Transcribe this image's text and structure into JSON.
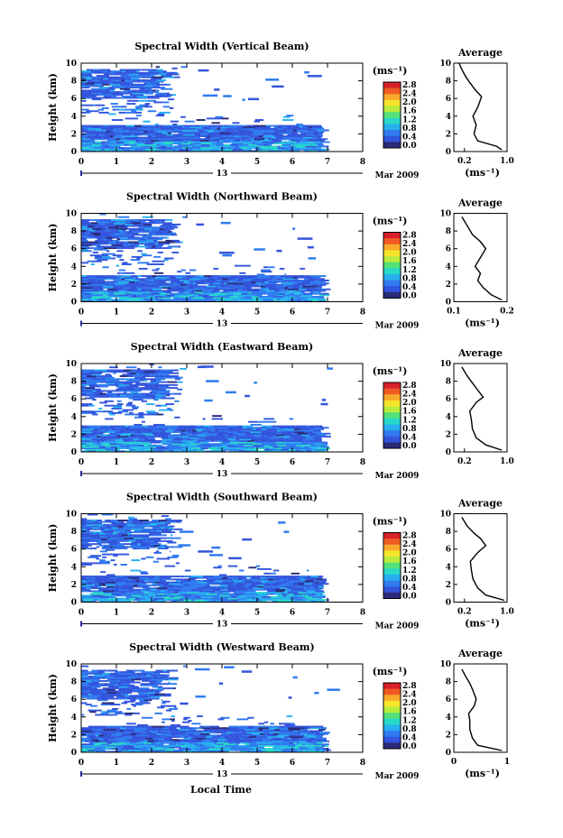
{
  "figure": {
    "xlabel": "Local Time",
    "date_label": "Mar 2009",
    "day_label": "13",
    "unit_label": "(ms⁻¹)",
    "avg_title": "Average",
    "ylabel": "Height (km)"
  },
  "chart_data": [
    {
      "type": "heatmap",
      "title": "Spectral Width (Vertical Beam)",
      "xlim": [
        0,
        8
      ],
      "ylim": [
        0,
        10
      ],
      "xticks": [
        "0",
        "1",
        "2",
        "3",
        "4",
        "5",
        "6",
        "7",
        "8"
      ],
      "yticks": [
        "0",
        "2",
        "4",
        "6",
        "8",
        "10"
      ],
      "colorbar_ticks": [
        "0.0",
        "0.4",
        "0.8",
        "1.2",
        "1.6",
        "2.0",
        "2.4",
        "2.8"
      ],
      "average": {
        "xlim": [
          0,
          1
        ],
        "xticks": [
          "0.2",
          "1.0"
        ],
        "xlabel": "(ms⁻¹)",
        "profile": [
          [
            0.9,
            0.2
          ],
          [
            0.8,
            0.6
          ],
          [
            0.45,
            1.2
          ],
          [
            0.38,
            2.0
          ],
          [
            0.42,
            3.0
          ],
          [
            0.36,
            4.0
          ],
          [
            0.45,
            5.0
          ],
          [
            0.52,
            6.2
          ],
          [
            0.4,
            7.0
          ],
          [
            0.3,
            7.8
          ],
          [
            0.22,
            8.5
          ],
          [
            0.14,
            9.4
          ],
          [
            0.1,
            10.0
          ]
        ]
      }
    },
    {
      "type": "heatmap",
      "title": "Spectral Width (Northward Beam)",
      "xlim": [
        0,
        8
      ],
      "ylim": [
        0,
        10
      ],
      "xticks": [
        "0",
        "1",
        "2",
        "3",
        "4",
        "5",
        "6",
        "7",
        "8"
      ],
      "yticks": [
        "0",
        "2",
        "4",
        "6",
        "8",
        "10"
      ],
      "colorbar_ticks": [
        "0.0",
        "0.4",
        "0.8",
        "1.2",
        "1.6",
        "2.0",
        "2.4",
        "2.8"
      ],
      "average": {
        "xlim": [
          0.1,
          0.2
        ],
        "xticks": [
          "0.1",
          "0.2"
        ],
        "xlabel": "(ms⁻¹)",
        "profile": [
          [
            0.19,
            0.2
          ],
          [
            0.17,
            0.8
          ],
          [
            0.155,
            1.6
          ],
          [
            0.145,
            2.4
          ],
          [
            0.15,
            3.2
          ],
          [
            0.14,
            4.0
          ],
          [
            0.15,
            5.0
          ],
          [
            0.16,
            6.0
          ],
          [
            0.15,
            6.8
          ],
          [
            0.135,
            7.6
          ],
          [
            0.125,
            8.6
          ],
          [
            0.115,
            9.6
          ]
        ]
      }
    },
    {
      "type": "heatmap",
      "title": "Spectral Width (Eastward Beam)",
      "xlim": [
        0,
        8
      ],
      "ylim": [
        0,
        10
      ],
      "xticks": [
        "0",
        "1",
        "2",
        "3",
        "4",
        "5",
        "6",
        "7",
        "8"
      ],
      "yticks": [
        "0",
        "2",
        "4",
        "6",
        "8",
        "10"
      ],
      "colorbar_ticks": [
        "0.0",
        "0.4",
        "0.8",
        "1.2",
        "1.6",
        "2.0",
        "2.4",
        "2.8"
      ],
      "average": {
        "xlim": [
          0,
          1
        ],
        "xticks": [
          "0.2",
          "1.0"
        ],
        "xlabel": "",
        "profile": [
          [
            0.9,
            0.2
          ],
          [
            0.6,
            0.8
          ],
          [
            0.42,
            1.6
          ],
          [
            0.35,
            2.6
          ],
          [
            0.33,
            3.6
          ],
          [
            0.3,
            4.6
          ],
          [
            0.42,
            5.6
          ],
          [
            0.55,
            6.2
          ],
          [
            0.45,
            7.0
          ],
          [
            0.35,
            7.8
          ],
          [
            0.25,
            8.6
          ],
          [
            0.15,
            9.6
          ]
        ]
      }
    },
    {
      "type": "heatmap",
      "title": "Spectral Width (Southward Beam)",
      "xlim": [
        0,
        8
      ],
      "ylim": [
        0,
        10
      ],
      "xticks": [
        "0",
        "1",
        "2",
        "3",
        "4",
        "5",
        "6",
        "7",
        "8"
      ],
      "yticks": [
        "0",
        "2",
        "4",
        "6",
        "8",
        "10"
      ],
      "colorbar_ticks": [
        "0.0",
        "0.4",
        "0.8",
        "1.2",
        "1.6",
        "2.0",
        "2.4",
        "2.8"
      ],
      "average": {
        "xlim": [
          0,
          1
        ],
        "xticks": [
          "0.2",
          "1.0"
        ],
        "xlabel": "(ms⁻¹)",
        "profile": [
          [
            0.95,
            0.2
          ],
          [
            0.6,
            0.8
          ],
          [
            0.45,
            1.6
          ],
          [
            0.36,
            2.6
          ],
          [
            0.33,
            3.6
          ],
          [
            0.31,
            4.6
          ],
          [
            0.45,
            5.6
          ],
          [
            0.6,
            6.4
          ],
          [
            0.5,
            7.2
          ],
          [
            0.38,
            7.8
          ],
          [
            0.25,
            8.6
          ],
          [
            0.15,
            9.6
          ]
        ]
      }
    },
    {
      "type": "heatmap",
      "title": "Spectral Width (Westward Beam)",
      "xlim": [
        0,
        8
      ],
      "ylim": [
        0,
        10
      ],
      "xticks": [
        "0",
        "1",
        "2",
        "3",
        "4",
        "5",
        "6",
        "7",
        "8"
      ],
      "yticks": [
        "0",
        "2",
        "4",
        "6",
        "8",
        "10"
      ],
      "colorbar_ticks": [
        "0.0",
        "0.4",
        "0.8",
        "1.2",
        "1.6",
        "2.0",
        "2.4",
        "2.8"
      ],
      "average": {
        "xlim": [
          0,
          1
        ],
        "xticks": [
          "0",
          "1"
        ],
        "xlabel": "(ms⁻¹)",
        "profile": [
          [
            0.9,
            0.2
          ],
          [
            0.45,
            0.8
          ],
          [
            0.35,
            1.6
          ],
          [
            0.3,
            2.6
          ],
          [
            0.3,
            3.6
          ],
          [
            0.28,
            4.4
          ],
          [
            0.38,
            5.2
          ],
          [
            0.42,
            6.0
          ],
          [
            0.36,
            7.0
          ],
          [
            0.3,
            7.8
          ],
          [
            0.22,
            8.6
          ],
          [
            0.15,
            9.4
          ]
        ]
      }
    }
  ]
}
